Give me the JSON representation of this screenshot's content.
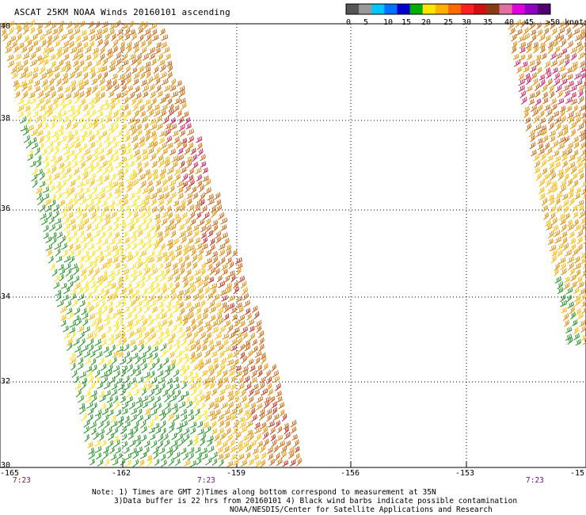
{
  "title": "ASCAT 25KM NOAA Winds 20160101 ascending",
  "colorbar": {
    "colors": [
      "#555555",
      "#999999",
      "#00c6ff",
      "#0070ff",
      "#0000cc",
      "#00b000",
      "#ffe400",
      "#ffb000",
      "#ff6a00",
      "#ff2020",
      "#d01010",
      "#8a3a10",
      "#e070a0",
      "#e000e0",
      "#9000c0",
      "#500070"
    ],
    "labels": [
      "0",
      "5",
      "10",
      "15",
      "20",
      "25",
      "30",
      "35",
      "40",
      "45",
      ">50 knots"
    ]
  },
  "axes": {
    "x_ticks": [
      "-165",
      "-162",
      "-159",
      "-156",
      "-153",
      "-15"
    ],
    "y_ticks": [
      "40",
      "38",
      "36",
      "34",
      "32",
      "30"
    ]
  },
  "times": [
    "7:23",
    "7:23",
    "7:23"
  ],
  "notes": [
    "Note: 1) Times are GMT 2)Times along bottom correspond to measurement at 35N",
    "3)Data buffer is 22 hrs from 20160101 4) Black wind barbs indicate possible contamination",
    "NOAA/NESDIS/Center for Satellite Applications and Research"
  ],
  "wind_colors": {
    "green": "#1f8f1f",
    "yellow": "#ffe000",
    "gold": "#ffb400",
    "orange": "#e08a00",
    "dark_orange": "#c8600a",
    "red": "#c0281e",
    "magenta": "#c8195a"
  }
}
